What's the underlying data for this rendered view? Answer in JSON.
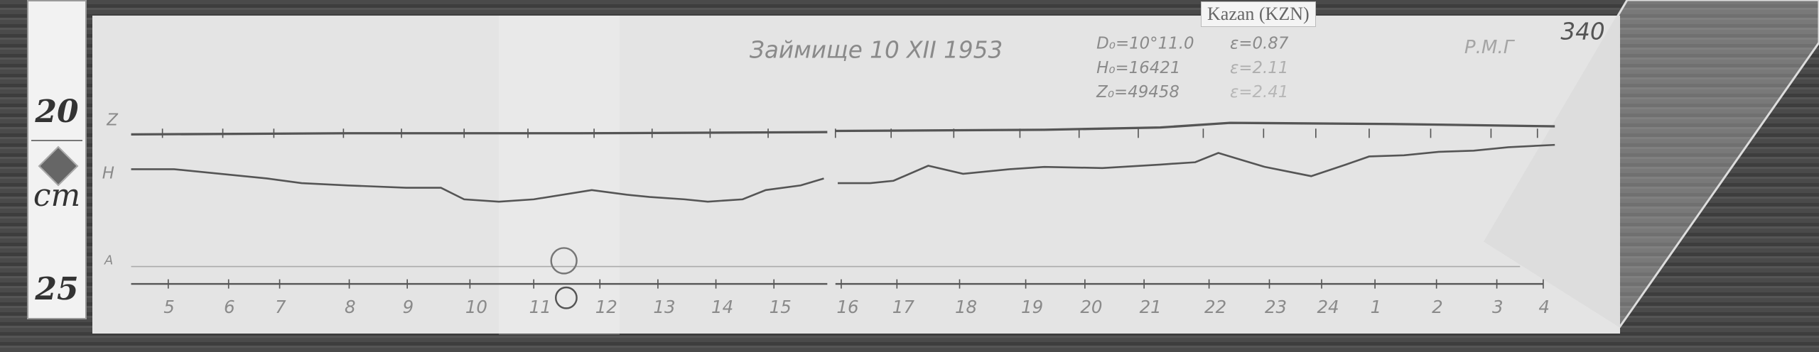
{
  "station_label": "Kazan (KZN)",
  "title": "Займище 10 XII 1953",
  "baselines": {
    "d0": "D₀=10°11.0",
    "h0": "H₀=16421",
    "z0": "Z₀=49458",
    "e_d": "ε=0.87",
    "e_h": "ε=2.11",
    "e_z": "ε=2.41"
  },
  "corner_mark": "Р.М.Г",
  "sheet_number": "340",
  "trace_labels": {
    "z": "Z",
    "h": "H",
    "a": "A"
  },
  "ruler": {
    "top": "20",
    "unit": "cm",
    "bottom": "25"
  },
  "hours": [
    "5",
    "6",
    "7",
    "8",
    "9",
    "10",
    "11",
    "12",
    "13",
    "14",
    "15",
    "16",
    "17",
    "18",
    "19",
    "20",
    "21",
    "22",
    "23",
    "24",
    "1",
    "2",
    "3",
    "4"
  ]
}
